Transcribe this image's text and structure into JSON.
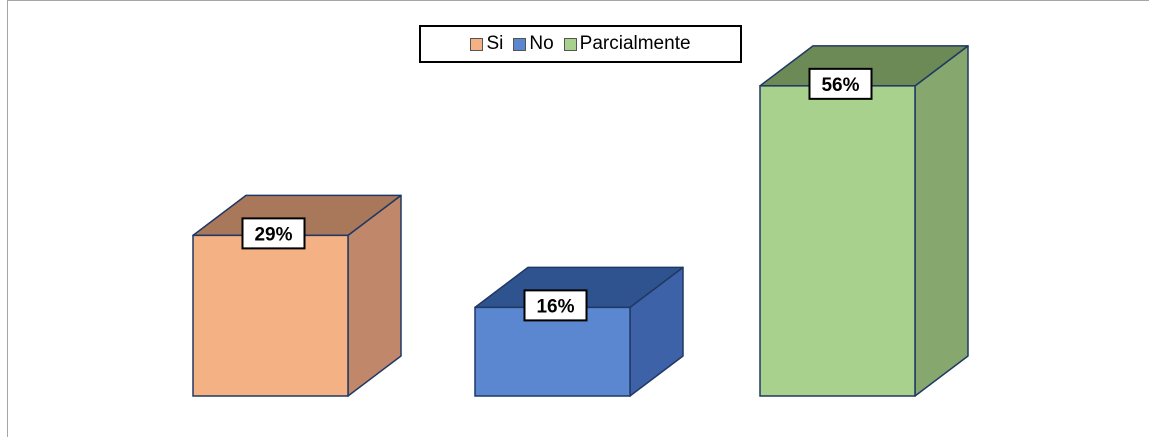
{
  "chart_data": {
    "type": "bar",
    "categories": [
      "Si",
      "No",
      "Parcialmente"
    ],
    "values": [
      29,
      16,
      56
    ],
    "value_labels": [
      "29%",
      "16%",
      "56%"
    ],
    "legend": {
      "position": "top",
      "entries": [
        "Si",
        "No",
        "Parcialmente"
      ]
    },
    "ylim": [
      0,
      65
    ],
    "grid": false,
    "three_d": true
  },
  "colors": {
    "Si": {
      "front": "#F4B183",
      "side": "#C0876A",
      "top": "#A9775A",
      "edge": "#203864"
    },
    "No": {
      "front": "#5B87D0",
      "side": "#3E62A8",
      "top": "#2F538F",
      "edge": "#203864"
    },
    "Parcialmente": {
      "front": "#A9D18E",
      "side": "#86A86E",
      "top": "#6B8A55",
      "edge": "#203864"
    }
  }
}
